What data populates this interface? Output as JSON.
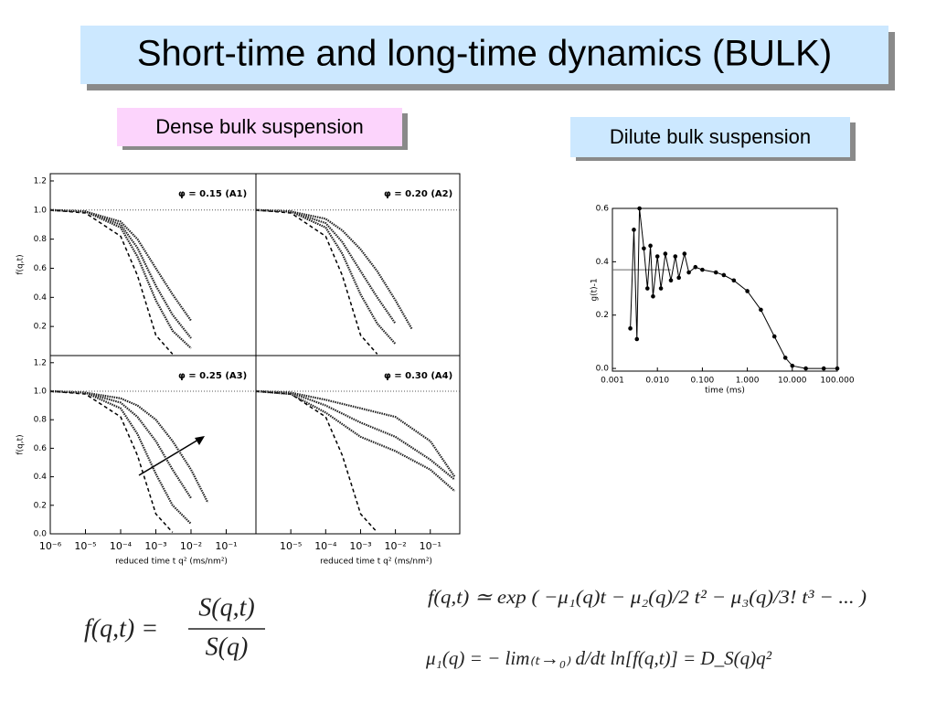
{
  "title": "Short-time and long-time dynamics (BULK)",
  "labels": {
    "dense": "Dense bulk suspension",
    "dilute": "Dilute bulk suspension"
  },
  "panels": {
    "type": "line",
    "xlim": [
      1e-06,
      0.7
    ],
    "ylim": [
      0,
      1.25
    ],
    "log_x": true,
    "ref_line": 1.0,
    "reference_curve": {
      "x": [
        1e-06,
        1e-05,
        0.0001,
        0.0003,
        0.001,
        0.003
      ],
      "y": [
        1.0,
        0.98,
        0.82,
        0.55,
        0.14,
        0.01
      ]
    },
    "items": [
      {
        "annotation": "φ = 0.15 (A1)",
        "y_label": "f(q,t)",
        "yticks": [
          0.2,
          0.4,
          0.6,
          0.8,
          {
            "value": 1,
            "label": "1.0"
          },
          1.2
        ],
        "curves": [
          {
            "x": [
              1e-06,
              1e-05,
              0.0001,
              0.0003,
              0.001,
              0.003,
              0.01
            ],
            "y": [
              1.0,
              0.99,
              0.88,
              0.68,
              0.38,
              0.17,
              0.05
            ]
          },
          {
            "x": [
              1e-06,
              1e-05,
              0.0001,
              0.0003,
              0.001,
              0.003,
              0.01
            ],
            "y": [
              1.0,
              0.99,
              0.9,
              0.74,
              0.48,
              0.28,
              0.12
            ]
          },
          {
            "x": [
              1e-06,
              1e-05,
              0.0001,
              0.0003,
              0.001,
              0.003,
              0.01
            ],
            "y": [
              1.0,
              0.99,
              0.92,
              0.8,
              0.6,
              0.42,
              0.24
            ]
          }
        ]
      },
      {
        "annotation": "φ = 0.20 (A2)",
        "curves": [
          {
            "x": [
              1e-06,
              1e-05,
              0.0001,
              0.0003,
              0.001,
              0.003,
              0.01
            ],
            "y": [
              1.0,
              0.99,
              0.88,
              0.7,
              0.42,
              0.22,
              0.08
            ]
          },
          {
            "x": [
              1e-06,
              1e-05,
              0.0001,
              0.0003,
              0.001,
              0.003,
              0.01
            ],
            "y": [
              1.0,
              0.99,
              0.91,
              0.78,
              0.58,
              0.4,
              0.22
            ]
          },
          {
            "x": [
              1e-06,
              1e-05,
              0.0001,
              0.0003,
              0.001,
              0.003,
              0.01,
              0.03
            ],
            "y": [
              1.0,
              0.99,
              0.94,
              0.86,
              0.73,
              0.58,
              0.38,
              0.18
            ]
          }
        ]
      },
      {
        "annotation": "φ = 0.25 (A3)",
        "y_label": "f(q,t)",
        "x_label": "reduced time  t q² (ms/nm²)",
        "yticks": [
          {
            "value": 0,
            "label": "0.0"
          },
          0.2,
          0.4,
          0.6,
          0.8,
          {
            "value": 1,
            "label": "1.0"
          },
          1.2
        ],
        "xticks": [
          {
            "value": 1e-06,
            "label": "10⁻⁶"
          },
          {
            "value": 1e-05,
            "label": "10⁻⁵"
          },
          {
            "value": 0.0001,
            "label": "10⁻⁴"
          },
          {
            "value": 0.001,
            "label": "10⁻³"
          },
          {
            "value": 0.01,
            "label": "10⁻²"
          },
          {
            "value": 0.1,
            "label": "10⁻¹"
          }
        ],
        "curves": [
          {
            "x": [
              1e-06,
              1e-05,
              0.0001,
              0.0003,
              0.001,
              0.003,
              0.01
            ],
            "y": [
              1.0,
              0.99,
              0.88,
              0.7,
              0.42,
              0.2,
              0.07
            ]
          },
          {
            "x": [
              1e-06,
              1e-05,
              0.0001,
              0.0003,
              0.001,
              0.003,
              0.01
            ],
            "y": [
              1.0,
              0.99,
              0.92,
              0.82,
              0.65,
              0.45,
              0.25
            ]
          },
          {
            "x": [
              1e-06,
              1e-05,
              0.0001,
              0.0003,
              0.001,
              0.003,
              0.01,
              0.03
            ],
            "y": [
              1.0,
              0.99,
              0.95,
              0.9,
              0.8,
              0.65,
              0.45,
              0.22
            ]
          }
        ]
      },
      {
        "annotation": "φ = 0.30 (A4)",
        "x_label": "reduced time  t q² (ms/nm²)",
        "xticks": [
          {
            "value": 1e-05,
            "label": "10⁻⁵"
          },
          {
            "value": 0.0001,
            "label": "10⁻⁴"
          },
          {
            "value": 0.001,
            "label": "10⁻³"
          },
          {
            "value": 0.01,
            "label": "10⁻²"
          },
          {
            "value": 0.1,
            "label": "10⁻¹"
          }
        ],
        "curves": [
          {
            "x": [
              1e-06,
              1e-05,
              0.0001,
              0.001,
              0.01,
              0.1,
              0.5
            ],
            "y": [
              1.0,
              0.98,
              0.85,
              0.68,
              0.58,
              0.45,
              0.3
            ]
          },
          {
            "x": [
              1e-06,
              1e-05,
              0.0001,
              0.001,
              0.01,
              0.1,
              0.5
            ],
            "y": [
              1.0,
              0.99,
              0.9,
              0.78,
              0.68,
              0.52,
              0.38
            ]
          },
          {
            "x": [
              1e-06,
              1e-05,
              0.0001,
              0.001,
              0.01,
              0.1,
              0.5
            ],
            "y": [
              1.0,
              0.99,
              0.94,
              0.88,
              0.82,
              0.65,
              0.4
            ]
          }
        ]
      }
    ]
  },
  "dilute_chart": {
    "type": "line",
    "log_x": true,
    "x_label": "time (ms)",
    "y_label": "g(t)-1",
    "xlim": [
      0.001,
      100
    ],
    "ylim": [
      -0.01,
      0.6
    ],
    "ref_line": 0.37,
    "xticks": [
      {
        "value": 0.001,
        "label": "0.001"
      },
      {
        "value": 0.01,
        "label": "0.010"
      },
      {
        "value": 0.1,
        "label": "0.100"
      },
      {
        "value": 1,
        "label": "1.000"
      },
      {
        "value": 10,
        "label": "10.000"
      },
      {
        "value": 100,
        "label": "100.000"
      }
    ],
    "yticks": [
      {
        "value": 0,
        "label": "0.0"
      },
      0.2,
      0.4,
      0.6
    ],
    "x": [
      0.0025,
      0.003,
      0.0035,
      0.004,
      0.005,
      0.006,
      0.007,
      0.008,
      0.01,
      0.012,
      0.015,
      0.02,
      0.025,
      0.03,
      0.04,
      0.05,
      0.07,
      0.1,
      0.2,
      0.3,
      0.5,
      1,
      2,
      4,
      7,
      10,
      20,
      50,
      100
    ],
    "values": [
      0.15,
      0.52,
      0.11,
      0.6,
      0.45,
      0.3,
      0.46,
      0.27,
      0.42,
      0.3,
      0.43,
      0.33,
      0.42,
      0.34,
      0.43,
      0.36,
      0.38,
      0.37,
      0.36,
      0.35,
      0.33,
      0.29,
      0.22,
      0.12,
      0.04,
      0.01,
      0.0,
      0.0,
      0.0
    ]
  },
  "equations": {
    "ratio": {
      "lhs": "f(q,t) =",
      "numerator": "S(q,t)",
      "denominator": "S(q)"
    },
    "expansion": "f(q,t) ≃ exp ( −μ₁(q)t − μ₂(q)/2 t² − μ₃(q)/3! t³ − ... )",
    "first_cumulant": "μ₁(q) = − lim₍ₜ→₀₎ d/dt ln[f(q,t)] = D_S(q)q²"
  }
}
